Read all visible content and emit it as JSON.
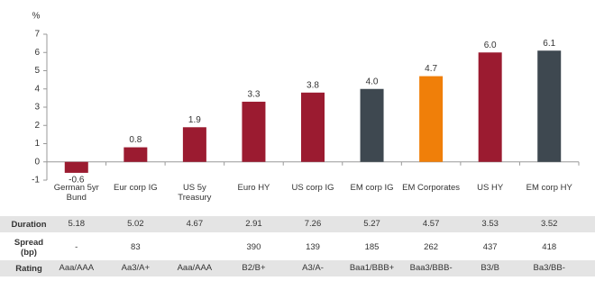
{
  "chart_data": {
    "type": "bar",
    "y_label": "%",
    "categories": [
      "German 5yr Bund",
      "Eur corp IG",
      "US 5y Treasury",
      "Euro HY",
      "US corp IG",
      "EM corp IG",
      "EM Corporates",
      "US HY",
      "EM corp HY"
    ],
    "values": [
      -0.6,
      0.8,
      1.9,
      3.3,
      3.8,
      4.0,
      4.7,
      6.0,
      6.1
    ],
    "value_labels": [
      "-0.6",
      "0.8",
      "1.9",
      "3.3",
      "3.8",
      "4.0",
      "4.7",
      "6.0",
      "6.1"
    ],
    "colors": [
      "#9b1b30",
      "#9b1b30",
      "#9b1b30",
      "#9b1b30",
      "#9b1b30",
      "#3e4850",
      "#f07f09",
      "#9b1b30",
      "#3e4850"
    ],
    "ylim": [
      -1,
      7
    ],
    "yticks": [
      -1,
      0,
      1,
      2,
      3,
      4,
      5,
      6,
      7
    ]
  },
  "table": {
    "rows": [
      {
        "label": "Duration",
        "cells": [
          "5.18",
          "5.02",
          "4.67",
          "2.91",
          "7.26",
          "5.27",
          "4.57",
          "3.53",
          "3.52"
        ]
      },
      {
        "label": "Spread (bp)",
        "cells": [
          "-",
          "83",
          null,
          "390",
          "139",
          "185",
          "262",
          "437",
          "418"
        ]
      },
      {
        "label": "Rating",
        "cells": [
          "Aaa/AAA",
          "Aa3/A+",
          "Aaa/AAA",
          "B2/B+",
          "A3/A-",
          "Baa1/BBB+",
          "Baa3/BBB-",
          "B3/B",
          "Ba3/BB-"
        ]
      }
    ]
  }
}
